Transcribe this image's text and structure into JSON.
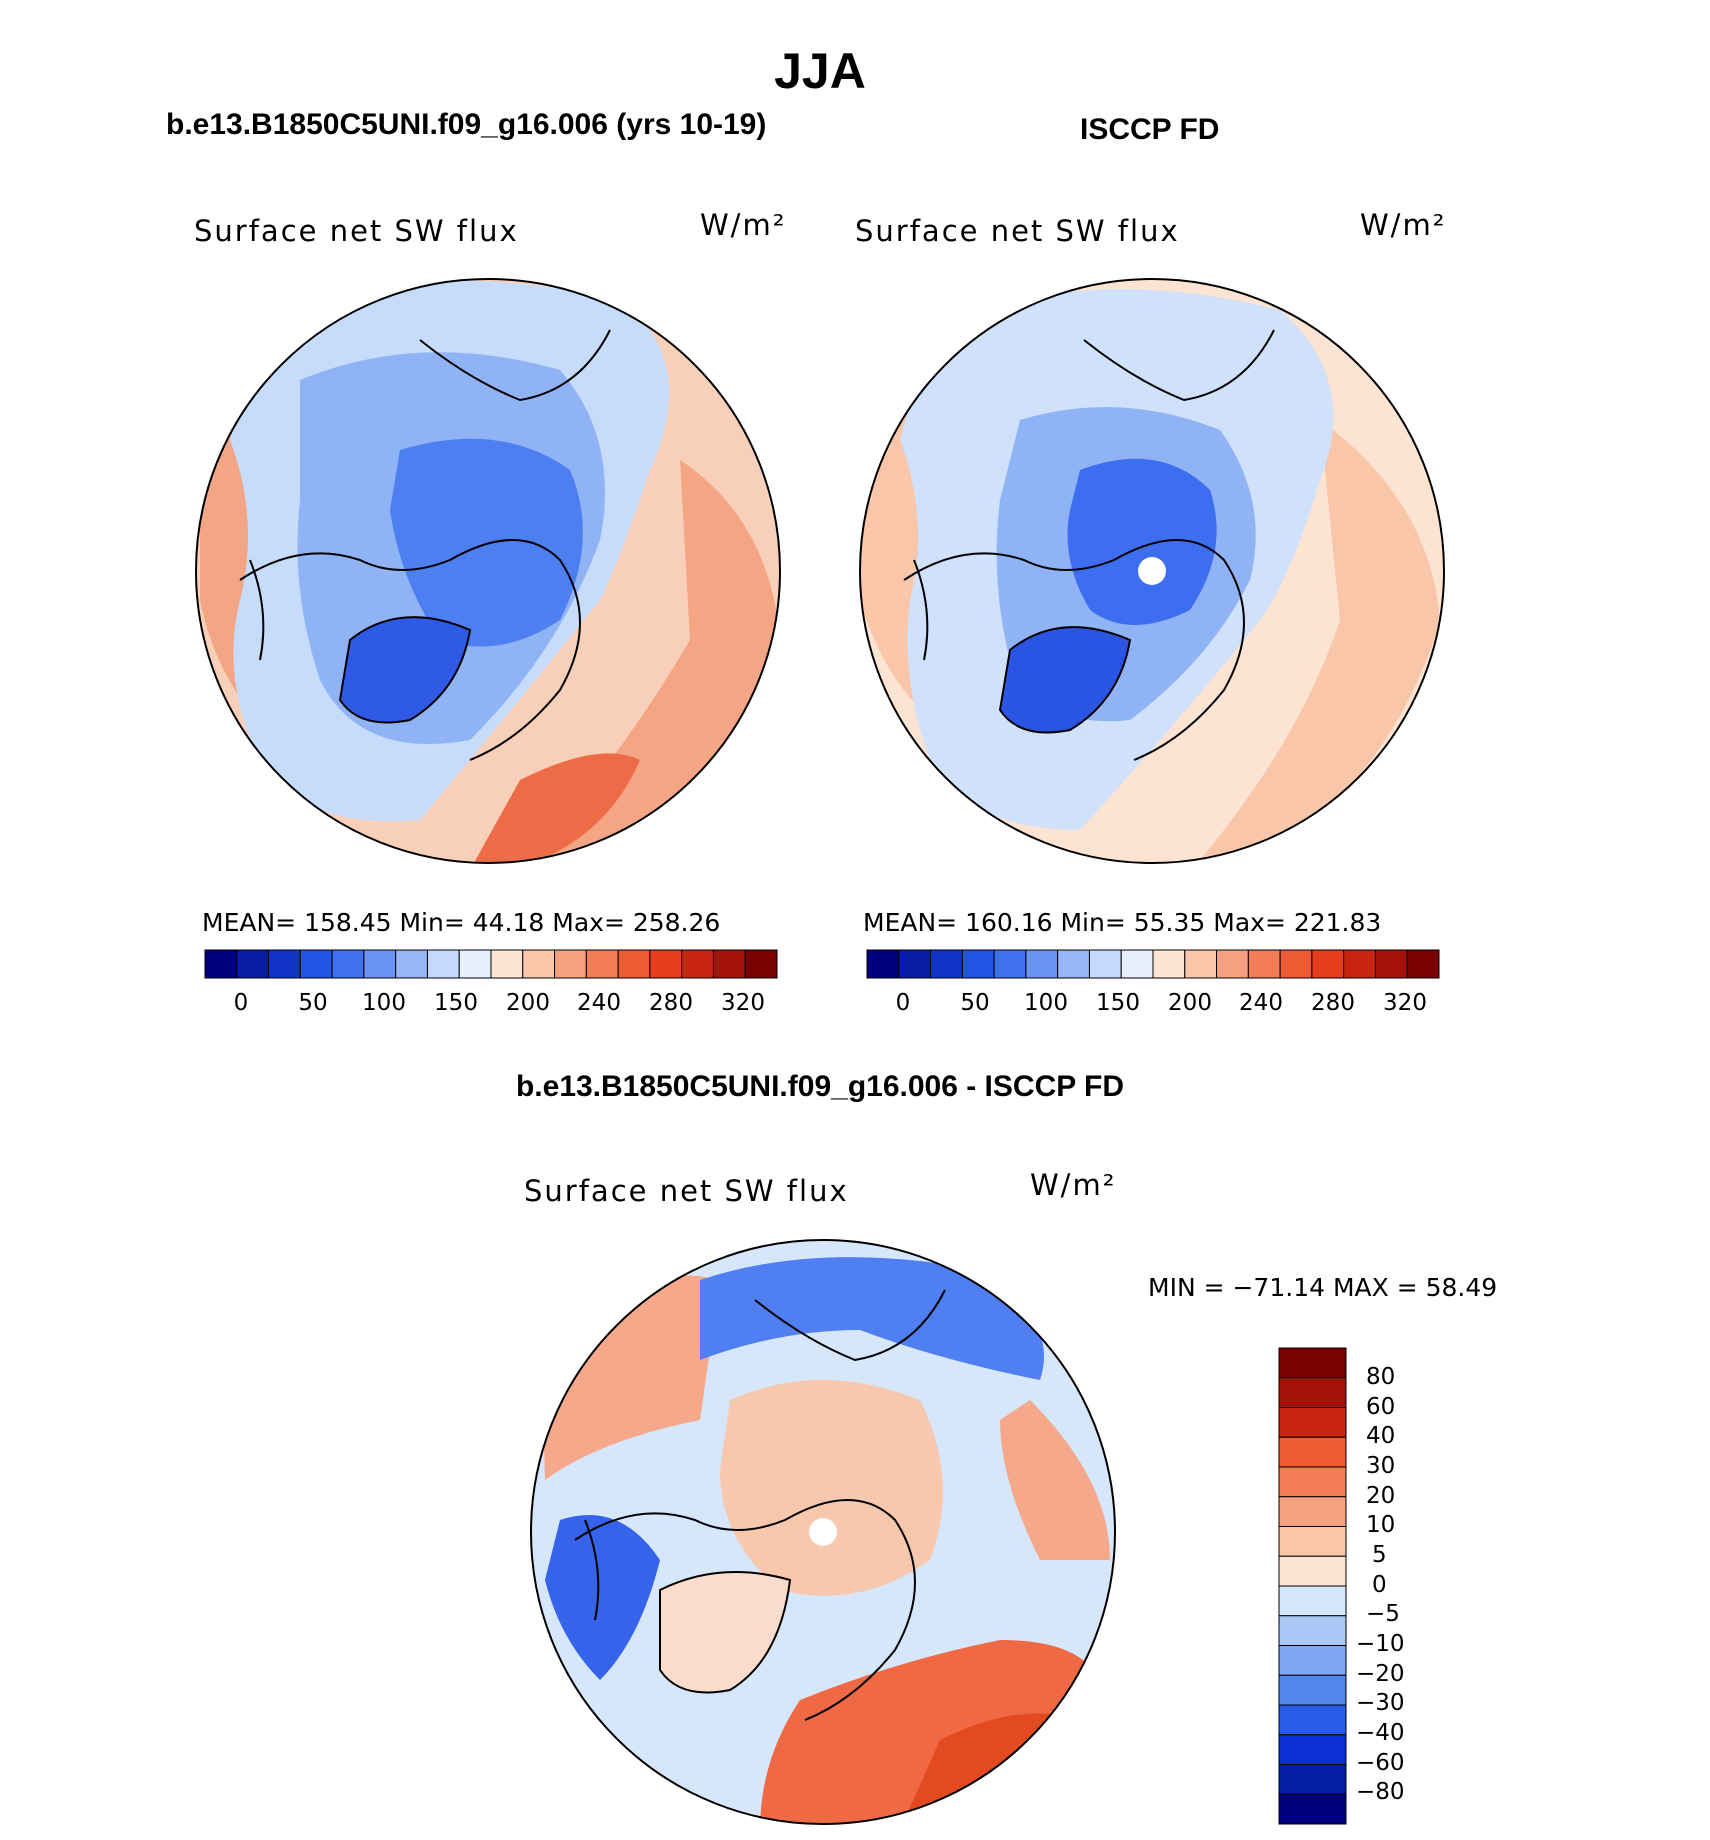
{
  "title": "JJA",
  "panels": {
    "left": {
      "title": "b.e13.B1850C5UNI.f09_g16.006 (yrs 10-19)",
      "variable": "Surface net SW flux",
      "units": "W/m²",
      "stats": "MEAN=  158.45    Min=    44.18    Max=  258.26"
    },
    "right": {
      "title": "ISCCP FD",
      "variable": "Surface net SW flux",
      "units": "W/m²",
      "stats": "MEAN=  160.16    Min=    55.35    Max=  221.83"
    },
    "diff": {
      "title": "b.e13.B1850C5UNI.f09_g16.006 - ISCCP FD",
      "variable": "Surface net SW flux",
      "units": "W/m²",
      "stats": "MIN  =  −71.14  MAX  =     58.49"
    }
  },
  "colorbar_horizontal": {
    "tick_labels": [
      "0",
      "50",
      "100",
      "150",
      "200",
      "240",
      "280",
      "320"
    ],
    "colors": [
      "#00007f",
      "#0a1ca6",
      "#1233c8",
      "#2352e6",
      "#3e70f0",
      "#6b93f3",
      "#98b6f7",
      "#c4d9fb",
      "#e6f0fd",
      "#fde5d6",
      "#f9c6aa",
      "#f5a07f",
      "#f27d56",
      "#ee5a34",
      "#e63e1e",
      "#c92410",
      "#a5120a",
      "#7b0000"
    ]
  },
  "colorbar_vertical": {
    "levels": [
      "80",
      "60",
      "40",
      "30",
      "20",
      "10",
      "5",
      "0",
      "−5",
      "−10",
      "−20",
      "−30",
      "−40",
      "−60",
      "−80"
    ],
    "colors": [
      "#7b0000",
      "#a5120a",
      "#c92410",
      "#ee5a34",
      "#f27d56",
      "#f5a07f",
      "#f9c6aa",
      "#fde5d6",
      "#d3e6fb",
      "#a9c8f6",
      "#7fa7f2",
      "#5385ed",
      "#2a5ce8",
      "#0a2fd6",
      "#061ea6",
      "#00007f"
    ]
  },
  "chart_data": [
    {
      "type": "heatmap",
      "projection": "north polar stereographic",
      "title": "b.e13.B1850C5UNI.f09_g16.006 (yrs 10-19)",
      "variable": "Surface net SW flux",
      "units": "W/m²",
      "mean": 158.45,
      "min": 44.18,
      "max": 258.26,
      "contour_levels": [
        0,
        25,
        50,
        75,
        100,
        125,
        150,
        175,
        200,
        220,
        240,
        260,
        280,
        300,
        320
      ]
    },
    {
      "type": "heatmap",
      "projection": "north polar stereographic",
      "title": "ISCCP FD",
      "variable": "Surface net SW flux",
      "units": "W/m²",
      "mean": 160.16,
      "min": 55.35,
      "max": 221.83,
      "contour_levels": [
        0,
        25,
        50,
        75,
        100,
        125,
        150,
        175,
        200,
        220,
        240,
        260,
        280,
        300,
        320
      ]
    },
    {
      "type": "heatmap",
      "projection": "north polar stereographic",
      "title": "b.e13.B1850C5UNI.f09_g16.006 - ISCCP FD",
      "variable": "Surface net SW flux",
      "units": "W/m²",
      "min": -71.14,
      "max": 58.49,
      "contour_levels": [
        -80,
        -60,
        -40,
        -30,
        -20,
        -10,
        -5,
        0,
        5,
        10,
        20,
        30,
        40,
        60,
        80
      ]
    }
  ]
}
